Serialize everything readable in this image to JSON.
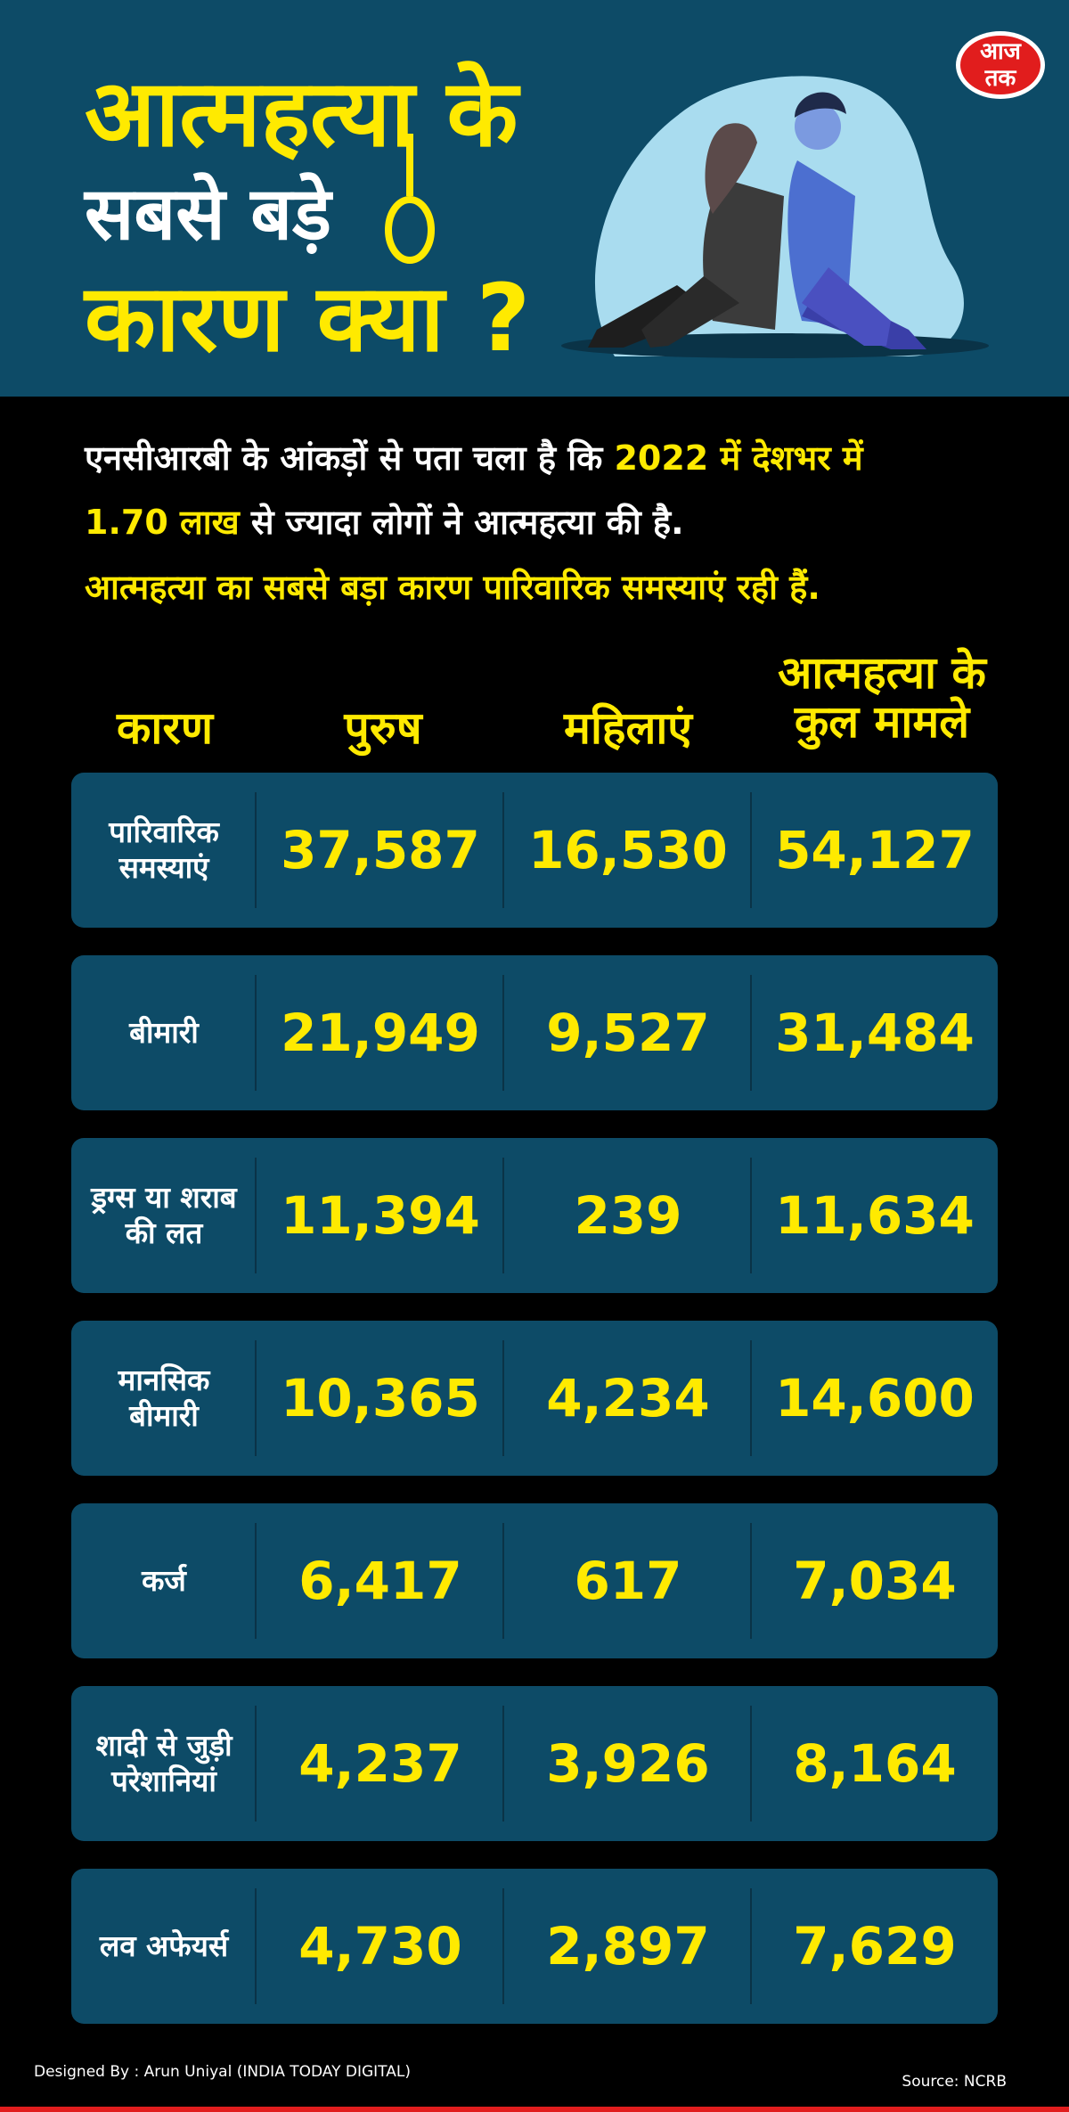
{
  "header": {
    "title_line1": "आत्महत्या के",
    "title_line2": "सबसे बड़े",
    "title_line3": "कारण क्या ?",
    "logo_line1": "आज",
    "logo_line2": "तक"
  },
  "intro": {
    "line1_part1": "एनसीआरबी के आंकड़ों से पता चला है कि ",
    "line1_part2": "2022 में देशभर में",
    "line2_part1": "1.70 लाख",
    "line2_part2": " से ज्यादा लोगों ने आत्महत्या की है.",
    "line3": "आत्महत्या का सबसे बड़ा कारण पारिवारिक समस्याएं रही हैं."
  },
  "table": {
    "headers": {
      "cause": "कारण",
      "men": "पुरुष",
      "women": "महिलाएं",
      "total_line1": "आत्महत्या के",
      "total_line2": "कुल मामले"
    },
    "rows": [
      {
        "cause": "पारिवारिक\nसमस्याएं",
        "men": "37,587",
        "women": "16,530",
        "total": "54,127"
      },
      {
        "cause": "बीमारी",
        "men": "21,949",
        "women": "9,527",
        "total": "31,484"
      },
      {
        "cause": "ड्रग्स या शराब\nकी लत",
        "men": "11,394",
        "women": "239",
        "total": "11,634"
      },
      {
        "cause": "मानसिक\nबीमारी",
        "men": "10,365",
        "women": "4,234",
        "total": "14,600"
      },
      {
        "cause": "कर्ज",
        "men": "6,417",
        "women": "617",
        "total": "7,034"
      },
      {
        "cause": "शादी से जुड़ी\nपरेशानियां",
        "men": "4,237",
        "women": "3,926",
        "total": "8,164"
      },
      {
        "cause": "लव अफेयर्स",
        "men": "4,730",
        "women": "2,897",
        "total": "7,629"
      }
    ]
  },
  "footer": {
    "designed_by": "Designed By : Arun Uniyal (INDIA TODAY DIGITAL)",
    "source": "Source: NCRB"
  },
  "colors": {
    "header_bg": "#0d4b67",
    "accent_yellow": "#ffea00",
    "page_bg": "#000000",
    "logo_red": "#e11d1d"
  },
  "icons": [
    "noose-icon",
    "aaj-tak-logo",
    "couple-illustration"
  ]
}
